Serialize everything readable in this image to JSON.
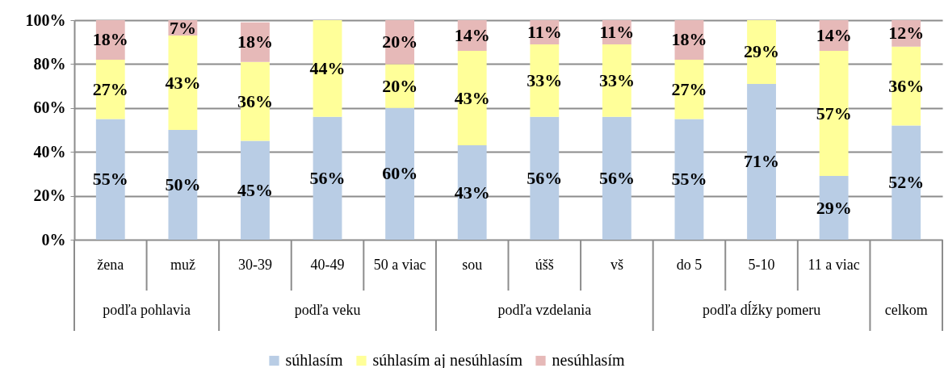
{
  "chart_data": {
    "type": "bar",
    "stacked": true,
    "categories": [
      "žena",
      "muž",
      "30-39",
      "40-49",
      "50 a viac",
      "sou",
      "úšš",
      "vš",
      "do 5",
      "5-10",
      "11 a viac",
      null
    ],
    "annotations": [
      "podľa pohlavia",
      "podľa veku",
      "podľa vzdelania",
      "podľa dĺžky pomeru",
      "celkom"
    ],
    "series": [
      {
        "name": "súhlasím",
        "color": "#b9cde5",
        "values": [
          55,
          50,
          45,
          56,
          60,
          43,
          56,
          56,
          55,
          71,
          29,
          52
        ],
        "value_labels": [
          "55%",
          "50%",
          "45%",
          "56%",
          "60%",
          "43%",
          "56%",
          "56%",
          "55%",
          "71%",
          "29%",
          "52%"
        ]
      },
      {
        "name": "súhlasím aj nesúhlasím",
        "color": "#ffff99",
        "values": [
          27,
          43,
          36,
          44,
          20,
          43,
          33,
          33,
          27,
          29,
          57,
          36
        ],
        "value_labels": [
          "27%",
          "43%",
          "36%",
          "44%",
          "20%",
          "43%",
          "33%",
          "33%",
          "27%",
          "29%",
          "57%",
          "36%"
        ]
      },
      {
        "name": "nesúhlasím",
        "color": "#e6b9b8",
        "values": [
          18,
          7,
          18,
          0,
          20,
          14,
          11,
          11,
          18,
          0,
          14,
          12
        ],
        "value_labels": [
          "18%",
          "7%",
          "18%",
          null,
          "20%",
          "14%",
          "11%",
          "11%",
          "18%",
          null,
          "14%",
          "12%"
        ]
      }
    ],
    "ylim": [
      0,
      100
    ],
    "yticks": [
      {
        "value": 0,
        "label": "0%"
      },
      {
        "value": 20,
        "label": "20%"
      },
      {
        "value": 40,
        "label": "40%"
      },
      {
        "value": 60,
        "label": "60%"
      },
      {
        "value": 80,
        "label": "80%"
      },
      {
        "value": 100,
        "label": "100%"
      }
    ],
    "grid": "y",
    "legend": "bottom"
  }
}
